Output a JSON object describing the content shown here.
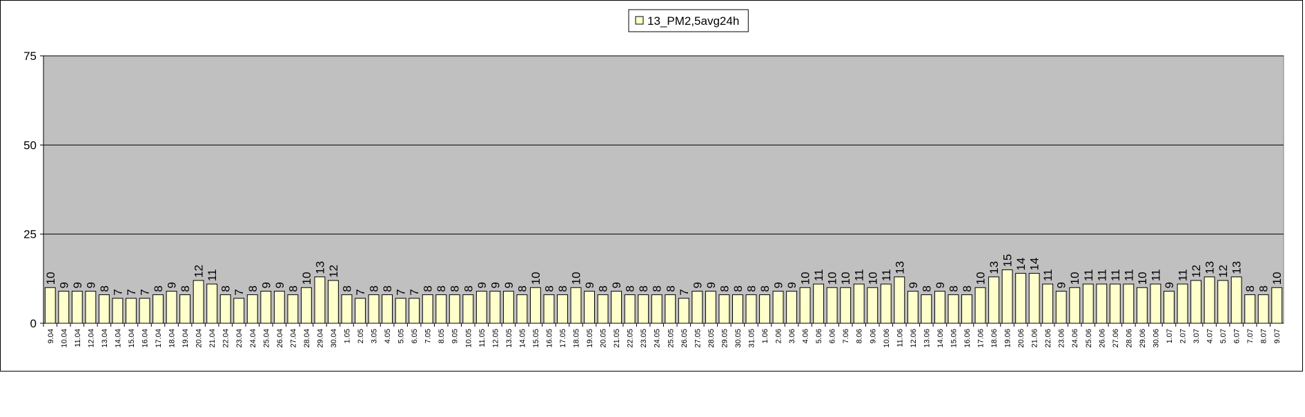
{
  "chart_data": {
    "type": "bar",
    "categories": [
      "9.04",
      "10.04",
      "11.04",
      "12.04",
      "13.04",
      "14.04",
      "15.04",
      "16.04",
      "17.04",
      "18.04",
      "19.04",
      "20.04",
      "21.04",
      "22.04",
      "23.04",
      "24.04",
      "25.04",
      "26.04",
      "27.04",
      "28.04",
      "29.04",
      "30.04",
      "1.05",
      "2.05",
      "3.05",
      "4.05",
      "5.05",
      "6.05",
      "7.05",
      "8.05",
      "9.05",
      "10.05",
      "11.05",
      "12.05",
      "13.05",
      "14.05",
      "15.05",
      "16.05",
      "17.05",
      "18.05",
      "19.05",
      "20.05",
      "21.05",
      "22.05",
      "23.05",
      "24.05",
      "25.05",
      "26.05",
      "27.05",
      "28.05",
      "29.05",
      "30.05",
      "31.05",
      "1.06",
      "2.06",
      "3.06",
      "4.06",
      "5.06",
      "6.06",
      "7.06",
      "8.06",
      "9.06",
      "10.06",
      "11.06",
      "12.06",
      "13.06",
      "14.06",
      "15.06",
      "16.06",
      "17.06",
      "18.06",
      "19.06",
      "20.06",
      "21.06",
      "22.06",
      "23.06",
      "24.06",
      "25.06",
      "26.06",
      "27.06",
      "28.06",
      "29.06",
      "30.06",
      "1.07",
      "2.07",
      "3.07",
      "4.07",
      "5.07",
      "6.07",
      "7.07",
      "8.07",
      "9.07"
    ],
    "series": [
      {
        "name": "13_PM2,5avg24h",
        "color": "#ffffcc",
        "values": [
          10,
          9,
          9,
          9,
          8,
          7,
          7,
          7,
          8,
          9,
          8,
          12,
          11,
          8,
          7,
          8,
          9,
          9,
          8,
          10,
          13,
          12,
          8,
          7,
          8,
          8,
          7,
          7,
          8,
          8,
          8,
          8,
          9,
          9,
          9,
          8,
          10,
          8,
          8,
          10,
          9,
          8,
          9,
          8,
          8,
          8,
          8,
          7,
          9,
          9,
          8,
          8,
          8,
          8,
          9,
          9,
          10,
          11,
          10,
          10,
          11,
          10,
          11,
          13,
          9,
          8,
          9,
          8,
          8,
          10,
          13,
          15,
          14,
          14,
          11,
          9,
          10,
          11,
          11,
          11,
          11,
          10,
          11,
          9,
          11,
          12,
          13,
          12,
          13,
          8,
          8,
          10
        ]
      }
    ],
    "ylim": [
      0,
      75
    ],
    "yticks": [
      0,
      25,
      50,
      75
    ],
    "grid": true,
    "plot_background": "#c0c0c0",
    "legend": "top"
  }
}
